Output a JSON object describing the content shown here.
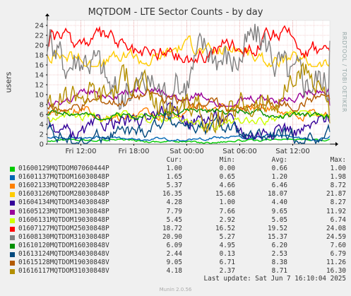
{
  "chart_data": {
    "type": "line",
    "title": "MQTDOM - LTE Sector Counts - by day",
    "ylabel": "users",
    "ylim": [
      0,
      25
    ],
    "yticks": [
      0,
      2,
      4,
      6,
      8,
      10,
      12,
      14,
      16,
      18,
      20,
      22,
      24
    ],
    "xticks": [
      "Fri 12:00",
      "Fri 18:00",
      "Sat 00:00",
      "Sat 06:00",
      "Sat 12:00"
    ],
    "xrange_hours": [
      32,
      0
    ],
    "xtick_hours_ago": [
      28.2,
      22.2,
      16.2,
      10.2,
      4.2
    ],
    "grid": true,
    "watermark": "RRDTOOL / TOBI OETIKER",
    "legend_headers": {
      "cur": "Cur:",
      "min": "Min:",
      "avg": "Avg:",
      "max": "Max:"
    },
    "series": [
      {
        "name": "01600129MQTDOM07060444P",
        "color": "#00cc00",
        "cur": "1.00",
        "min": "0.00",
        "avg": "0.66",
        "max": "1.00"
      },
      {
        "name": "01601137MQTDOM16030848P",
        "color": "#0066b3",
        "cur": "1.65",
        "min": "0.65",
        "avg": "1.20",
        "max": "1.98"
      },
      {
        "name": "01602133MQTDOM22030848P",
        "color": "#ff8000",
        "cur": "5.37",
        "min": "4.66",
        "avg": "6.46",
        "max": "8.72"
      },
      {
        "name": "01603126MQTDOM28030848P",
        "color": "#ffcc00",
        "cur": "16.35",
        "min": "15.68",
        "avg": "18.07",
        "max": "21.87"
      },
      {
        "name": "01604134MQTDOM34030848P",
        "color": "#330099",
        "cur": "4.28",
        "min": "1.00",
        "avg": "4.40",
        "max": "8.27"
      },
      {
        "name": "01605123MQTDOM13030848P",
        "color": "#990099",
        "cur": "7.79",
        "min": "7.66",
        "avg": "9.65",
        "max": "11.92"
      },
      {
        "name": "01606131MQTDOM19030848P",
        "color": "#ccff00",
        "cur": "5.45",
        "min": "2.92",
        "avg": "5.05",
        "max": "6.74"
      },
      {
        "name": "01607127MQTDOM25030848P",
        "color": "#ff0000",
        "cur": "18.72",
        "min": "16.52",
        "avg": "19.52",
        "max": "24.08"
      },
      {
        "name": "01608130MQTDOM31030848P",
        "color": "#808080",
        "cur": "20.90",
        "min": "5.27",
        "avg": "15.37",
        "max": "24.59"
      },
      {
        "name": "01610120MQTDOM16030848V",
        "color": "#008f00",
        "cur": "6.09",
        "min": "4.95",
        "avg": "6.20",
        "max": "7.60"
      },
      {
        "name": "01613124MQTDOM34030848V",
        "color": "#00487d",
        "cur": "2.44",
        "min": "0.13",
        "avg": "2.53",
        "max": "6.79"
      },
      {
        "name": "01615128MQTDOM19030848V",
        "color": "#b35a00",
        "cur": "9.05",
        "min": "6.71",
        "avg": "8.38",
        "max": "11.26"
      },
      {
        "name": "01616117MQTDOM31030848V",
        "color": "#b38f00",
        "cur": "4.18",
        "min": "2.37",
        "avg": "8.71",
        "max": "16.30"
      }
    ]
  },
  "footer": {
    "last_update": "Last update: Sat Jun  7 16:10:04 2025",
    "munin_version": "Munin 2.0.56"
  }
}
